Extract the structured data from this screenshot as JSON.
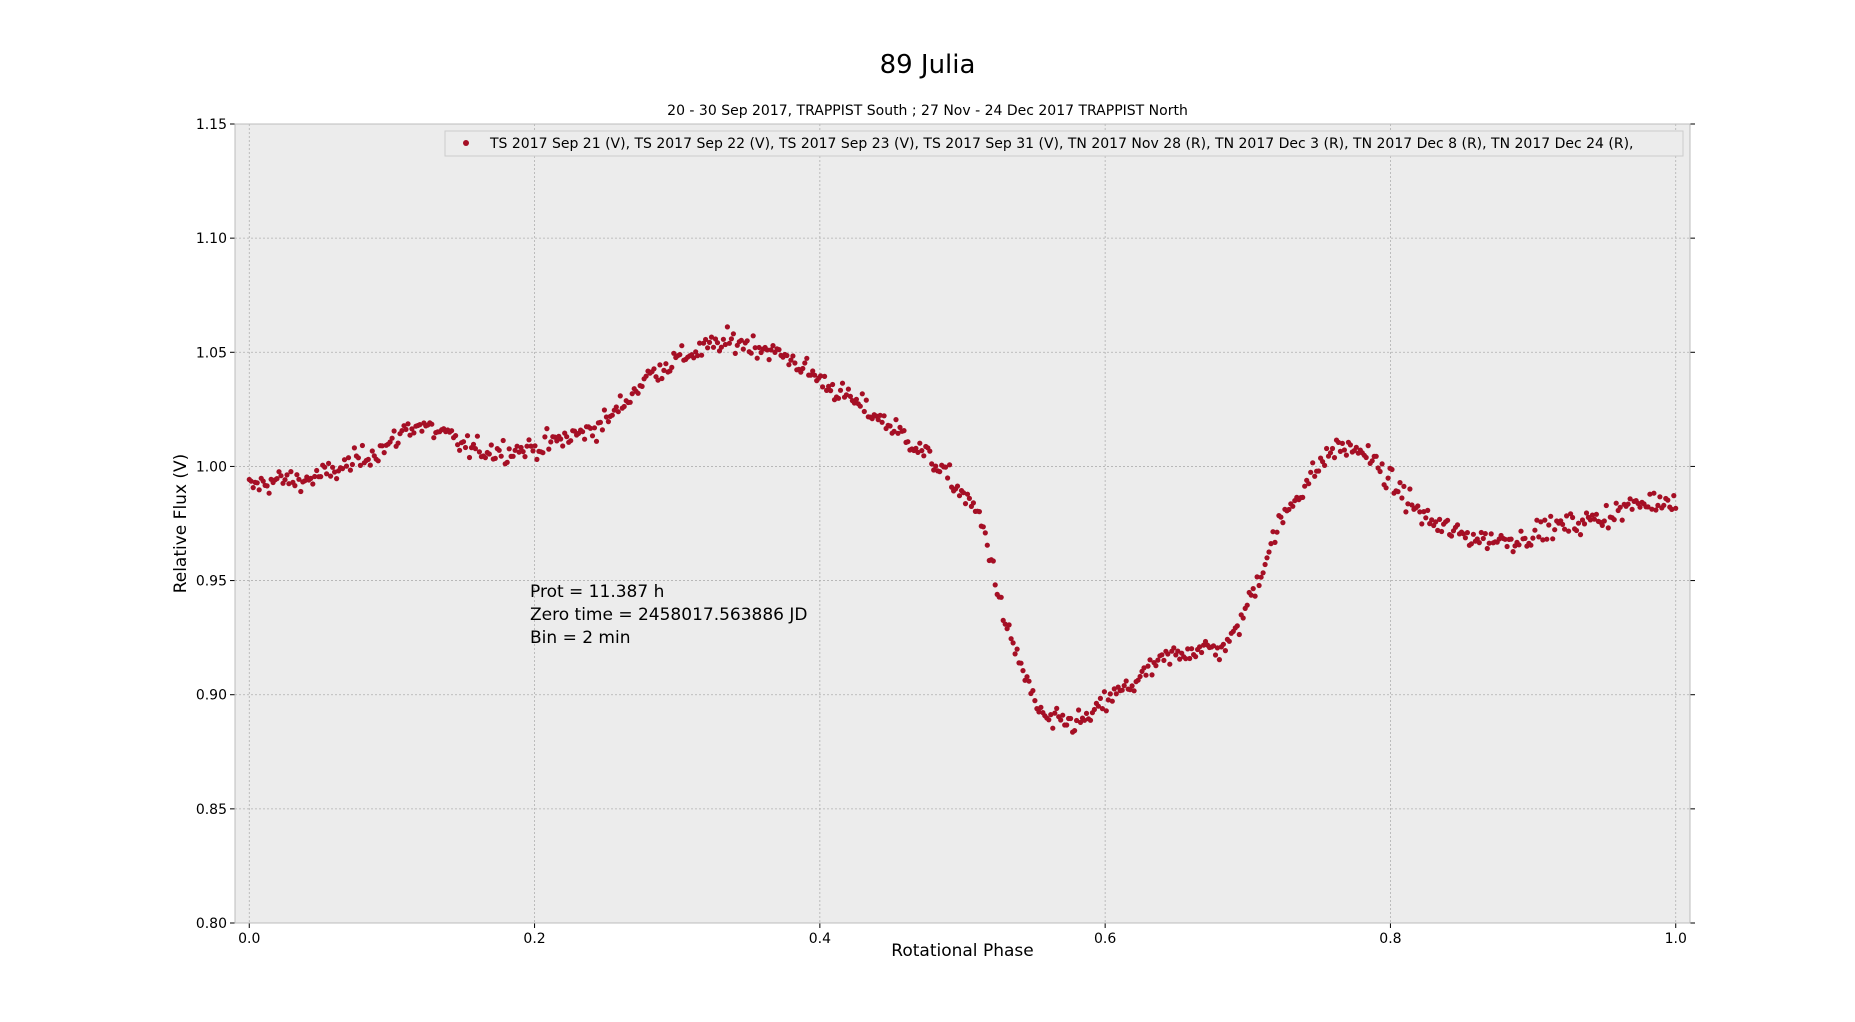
{
  "chart_data": {
    "type": "scatter",
    "title": "89 Julia",
    "subtitle": "20 - 30 Sep 2017, TRAPPIST South ; 27 Nov - 24 Dec 2017 TRAPPIST North",
    "xlabel": "Rotational Phase",
    "ylabel": "Relative Flux (V)",
    "xlim": [
      -0.01,
      1.01
    ],
    "ylim": [
      0.8,
      1.15
    ],
    "x_ticks": [
      "0.0",
      "0.2",
      "0.4",
      "0.6",
      "0.8",
      "1.0"
    ],
    "y_ticks": [
      "0.80",
      "0.85",
      "0.90",
      "0.95",
      "1.00",
      "1.05",
      "1.10",
      "1.15"
    ],
    "grid": true,
    "legend_position": "top-right",
    "legend_label": "TS 2017 Sep 21  (V), TS 2017 Sep 22  (V), TS 2017 Sep 23  (V), TS 2017 Sep 31  (V), TN 2017 Nov 28  (R), TN 2017 Dec 3  (R), TN 2017 Dec 8  (R), TN 2017 Dec 24  (R),",
    "annotation": [
      "Prot = 11.387 h",
      "Zero time = 2458017.563886 JD",
      "Bin = 2 min"
    ],
    "marker_color": "#a50f25",
    "background_color": "#ececec",
    "series": [
      {
        "curve": [
          [
            0.0,
            0.991
          ],
          [
            0.02,
            0.994
          ],
          [
            0.04,
            0.994
          ],
          [
            0.06,
            0.998
          ],
          [
            0.08,
            1.004
          ],
          [
            0.1,
            1.01
          ],
          [
            0.11,
            1.017
          ],
          [
            0.12,
            1.018
          ],
          [
            0.14,
            1.013
          ],
          [
            0.15,
            1.009
          ],
          [
            0.16,
            1.007
          ],
          [
            0.18,
            1.007
          ],
          [
            0.2,
            1.008
          ],
          [
            0.22,
            1.012
          ],
          [
            0.24,
            1.016
          ],
          [
            0.25,
            1.02
          ],
          [
            0.26,
            1.026
          ],
          [
            0.27,
            1.033
          ],
          [
            0.28,
            1.04
          ],
          [
            0.3,
            1.047
          ],
          [
            0.32,
            1.052
          ],
          [
            0.34,
            1.055
          ],
          [
            0.36,
            1.052
          ],
          [
            0.38,
            1.047
          ],
          [
            0.4,
            1.038
          ],
          [
            0.42,
            1.03
          ],
          [
            0.44,
            1.022
          ],
          [
            0.46,
            1.013
          ],
          [
            0.48,
            1.002
          ],
          [
            0.5,
            0.988
          ],
          [
            0.51,
            0.98
          ],
          [
            0.515,
            0.972
          ],
          [
            0.52,
            0.96
          ],
          [
            0.525,
            0.945
          ],
          [
            0.53,
            0.93
          ],
          [
            0.54,
            0.915
          ],
          [
            0.55,
            0.897
          ],
          [
            0.56,
            0.888
          ],
          [
            0.57,
            0.888
          ],
          [
            0.58,
            0.888
          ],
          [
            0.59,
            0.89
          ],
          [
            0.6,
            0.897
          ],
          [
            0.62,
            0.905
          ],
          [
            0.64,
            0.915
          ],
          [
            0.66,
            0.92
          ],
          [
            0.68,
            0.92
          ],
          [
            0.69,
            0.925
          ],
          [
            0.7,
            0.94
          ],
          [
            0.71,
            0.955
          ],
          [
            0.72,
            0.972
          ],
          [
            0.73,
            0.983
          ],
          [
            0.74,
            0.992
          ],
          [
            0.75,
            1.0
          ],
          [
            0.76,
            1.008
          ],
          [
            0.77,
            1.008
          ],
          [
            0.78,
            1.007
          ],
          [
            0.79,
            1.001
          ],
          [
            0.8,
            0.993
          ],
          [
            0.81,
            0.987
          ],
          [
            0.82,
            0.98
          ],
          [
            0.83,
            0.975
          ],
          [
            0.85,
            0.97
          ],
          [
            0.87,
            0.968
          ],
          [
            0.89,
            0.968
          ],
          [
            0.91,
            0.973
          ],
          [
            0.93,
            0.975
          ],
          [
            0.95,
            0.978
          ],
          [
            0.97,
            0.983
          ],
          [
            1.0,
            0.986
          ]
        ],
        "count": 720,
        "scatter": 0.0035
      }
    ]
  }
}
